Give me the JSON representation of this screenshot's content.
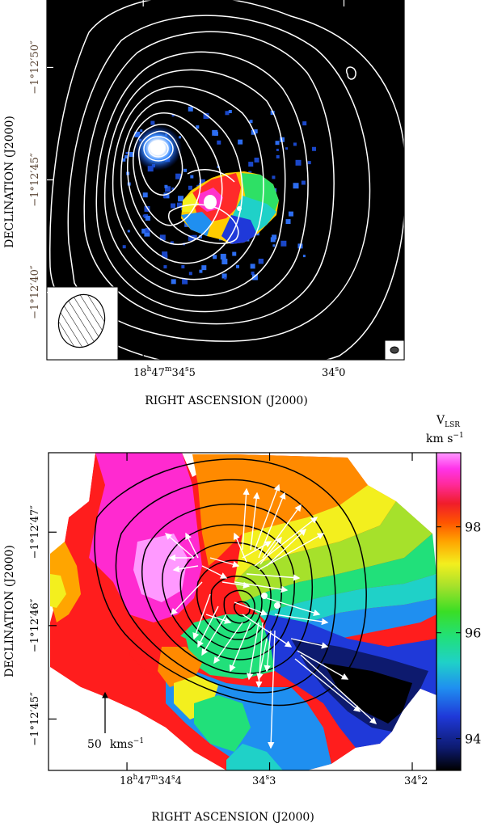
{
  "chart_data": [
    {
      "type": "heatmap",
      "panel": "top",
      "xlabel": "RIGHT ASCENSION (J2000)",
      "ylabel": "DECLINATION (J2000)",
      "x_ticks": [
        {
          "value": 34.5,
          "hms_h": "18",
          "hms_m": "47",
          "hms_s": "34",
          "frac": "5"
        },
        {
          "value": 34.0,
          "hms_s": "34",
          "frac": "0"
        }
      ],
      "y_ticks": [
        {
          "value": 40,
          "label": "−1°12′40″"
        },
        {
          "value": 45,
          "label": "−1°12′45″"
        },
        {
          "value": 50,
          "label": "−1°12′50″"
        }
      ],
      "xlim": [
        34.74,
        33.85
      ],
      "ylim": [
        53.0,
        37.0
      ],
      "background": "#000000",
      "contour_color": "#ffffff",
      "beams": [
        "large hatched ellipse (bottom-left)",
        "small ellipse (bottom-right)"
      ]
    },
    {
      "type": "heatmap",
      "panel": "bottom",
      "xlabel": "RIGHT ASCENSION (J2000)",
      "ylabel": "DECLINATION (J2000)",
      "x_ticks": [
        {
          "value": 34.4,
          "hms_h": "18",
          "hms_m": "47",
          "hms_s": "34",
          "frac": "4"
        },
        {
          "value": 34.3,
          "hms_s": "34",
          "frac": "3"
        },
        {
          "value": 34.2,
          "hms_s": "34",
          "frac": "2"
        }
      ],
      "y_ticks": [
        {
          "value": 45,
          "label": "−1°12′45″"
        },
        {
          "value": 46,
          "label": "−1°12′46″"
        },
        {
          "value": 47,
          "label": "−1°12′47″"
        }
      ],
      "xlim": [
        34.455,
        34.183
      ],
      "ylim": [
        47.85,
        44.45
      ],
      "colorbar": {
        "title_main": "V",
        "title_sub": "LSR",
        "unit_main": "km s",
        "unit_sup": "−1",
        "ticks": [
          94,
          96,
          98
        ],
        "range": [
          93.4,
          99.4
        ],
        "stops": [
          "#000000",
          "#0d1a6e",
          "#1f39d9",
          "#1f8ff0",
          "#1fd1c8",
          "#21e07a",
          "#3ade25",
          "#a6e12b",
          "#f3ef1e",
          "#ffa500",
          "#ff5500",
          "#f01d2a",
          "#ff2a9a",
          "#ff33ea",
          "#ff99ff"
        ]
      },
      "scale_arrow_label": "50",
      "scale_arrow_unit": "kms",
      "scale_arrow_unit_sup": "−1",
      "contour_color": "#000000",
      "vector_color": "#ffffff"
    }
  ]
}
